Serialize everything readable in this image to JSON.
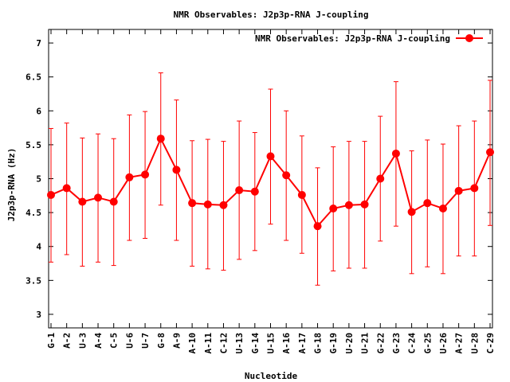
{
  "chart_data": {
    "type": "line",
    "title": "NMR Observables: J2p3p-RNA J-coupling",
    "xlabel": "Nucleotide",
    "ylabel": "J2p3p-RNA (Hz)",
    "ylim": [
      2.8,
      7.2
    ],
    "yticks": [
      "3",
      "3.5",
      "4",
      "4.5",
      "5",
      "5.5",
      "6",
      "6.5",
      "7"
    ],
    "legend_position": "top-right",
    "grid": false,
    "categories": [
      "G-1",
      "A-2",
      "U-3",
      "A-4",
      "C-5",
      "U-6",
      "U-7",
      "G-8",
      "A-9",
      "A-10",
      "A-11",
      "C-12",
      "U-13",
      "G-14",
      "U-15",
      "A-16",
      "A-17",
      "G-18",
      "G-19",
      "U-20",
      "U-21",
      "G-22",
      "G-23",
      "C-24",
      "G-25",
      "U-26",
      "A-27",
      "U-28",
      "C-29"
    ],
    "series": [
      {
        "name": "NMR Observables: J2p3p-RNA J-coupling",
        "color": "#ff0000",
        "values": [
          4.76,
          4.86,
          4.66,
          4.72,
          4.66,
          5.02,
          5.06,
          5.59,
          5.13,
          4.64,
          4.62,
          4.61,
          4.83,
          4.81,
          5.33,
          5.05,
          4.76,
          4.3,
          4.56,
          4.61,
          4.62,
          5.0,
          5.37,
          4.51,
          4.64,
          4.56,
          4.82,
          4.86,
          5.39
        ],
        "err_low": [
          3.77,
          3.88,
          3.71,
          3.77,
          3.72,
          4.09,
          4.12,
          4.61,
          4.09,
          3.71,
          3.67,
          3.65,
          3.81,
          3.94,
          4.33,
          4.09,
          3.9,
          3.43,
          3.64,
          3.68,
          3.68,
          4.08,
          4.3,
          3.6,
          3.7,
          3.6,
          3.86,
          3.86,
          4.31
        ],
        "err_high": [
          5.74,
          5.82,
          5.6,
          5.66,
          5.59,
          5.94,
          5.99,
          6.56,
          6.16,
          5.56,
          5.58,
          5.55,
          5.85,
          5.68,
          6.32,
          6.0,
          5.63,
          5.16,
          5.47,
          5.55,
          5.55,
          5.92,
          6.43,
          5.41,
          5.57,
          5.51,
          5.78,
          5.85,
          6.45
        ]
      }
    ]
  }
}
